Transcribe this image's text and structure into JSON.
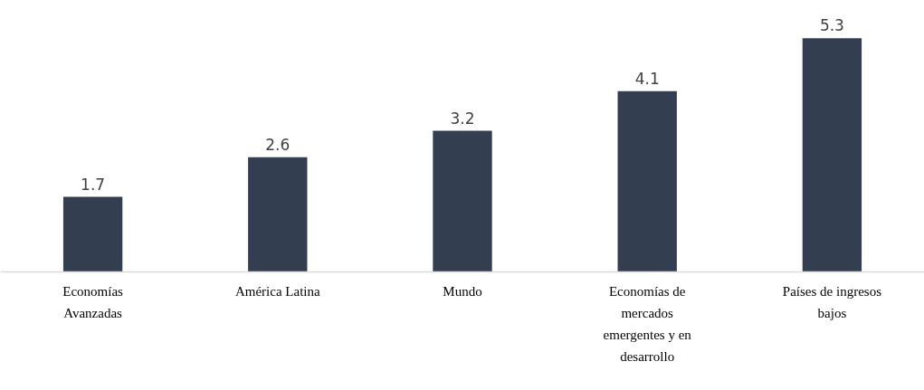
{
  "chart_data": {
    "type": "bar",
    "categories": [
      "Economías Avanzadas",
      "América Latina",
      "Mundo",
      "Economías de mercados emergentes y en desarrollo",
      "Países de ingresos bajos"
    ],
    "values": [
      1.7,
      2.6,
      3.2,
      4.1,
      5.3
    ],
    "color": "#333f50",
    "data_labels": true
  }
}
